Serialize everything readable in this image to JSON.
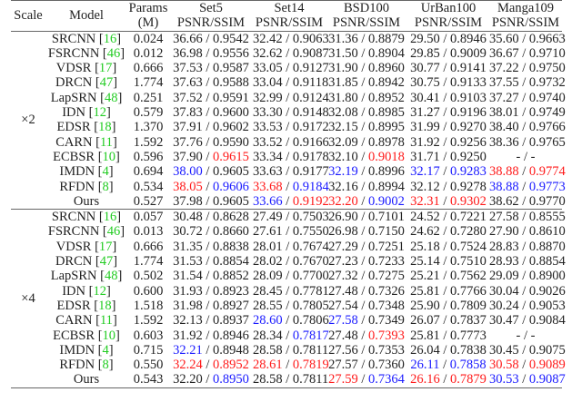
{
  "header": {
    "scale": "Scale",
    "model": "Model",
    "params": [
      "Params",
      "(M)"
    ],
    "datasets": [
      "Set5",
      "Set14",
      "BSD100",
      "UrBan100",
      "Manga109"
    ],
    "metric": "PSNR/SSIM"
  },
  "colors": {
    "best": "#ff1a1a",
    "second": "#1a1aff",
    "citation": "#22cc22"
  },
  "groups": [
    {
      "scale": "×2",
      "rows": [
        {
          "model": "SRCNN",
          "ref": "16",
          "params": "0.024",
          "cells": [
            [
              "36.66",
              "0.9542",
              "",
              ""
            ],
            [
              "32.42",
              "0.9063",
              "",
              ""
            ],
            [
              "31.36",
              "0.8879",
              "",
              ""
            ],
            [
              "29.50",
              "0.8946",
              "",
              ""
            ],
            [
              "35.60",
              "0.9663",
              "",
              ""
            ]
          ]
        },
        {
          "model": "FSRCNN",
          "ref": "46",
          "params": "0.012",
          "cells": [
            [
              "36.98",
              "0.9556",
              "",
              ""
            ],
            [
              "32.62",
              "0.9087",
              "",
              ""
            ],
            [
              "31.50",
              "0.8904",
              "",
              ""
            ],
            [
              "29.85",
              "0.9009",
              "",
              ""
            ],
            [
              "36.67",
              "0.9710",
              "",
              ""
            ]
          ]
        },
        {
          "model": "VDSR",
          "ref": "17",
          "params": "0.666",
          "cells": [
            [
              "37.53",
              "0.9587",
              "",
              ""
            ],
            [
              "33.05",
              "0.9127",
              "",
              ""
            ],
            [
              "31.90",
              "0.8960",
              "",
              ""
            ],
            [
              "30.77",
              "0.9141",
              "",
              ""
            ],
            [
              "37.22",
              "0.9750",
              "",
              ""
            ]
          ]
        },
        {
          "model": "DRCN",
          "ref": "47",
          "params": "1.774",
          "cells": [
            [
              "37.63",
              "0.9588",
              "",
              ""
            ],
            [
              "33.04",
              "0.9118",
              "",
              ""
            ],
            [
              "31.85",
              "0.8942",
              "",
              ""
            ],
            [
              "30.75",
              "0.9133",
              "",
              ""
            ],
            [
              "37.55",
              "0.9732",
              "",
              ""
            ]
          ]
        },
        {
          "model": "LapSRN",
          "ref": "48",
          "params": "0.251",
          "cells": [
            [
              "37.52",
              "0.9591",
              "",
              ""
            ],
            [
              "32.99",
              "0.9124",
              "",
              ""
            ],
            [
              "31.80",
              "0.8952",
              "",
              ""
            ],
            [
              "30.41",
              "0.9103",
              "",
              ""
            ],
            [
              "37.27",
              "0.9740",
              "",
              ""
            ]
          ]
        },
        {
          "model": "IDN",
          "ref": "12",
          "params": "0.579",
          "cells": [
            [
              "37.83",
              "0.9600",
              "",
              ""
            ],
            [
              "33.30",
              "0.9148",
              "",
              ""
            ],
            [
              "32.08",
              "0.8985",
              "",
              ""
            ],
            [
              "31.27",
              "0.9196",
              "",
              ""
            ],
            [
              "38.01",
              "0.9749",
              "",
              ""
            ]
          ]
        },
        {
          "model": "EDSR",
          "ref": "18",
          "params": "1.370",
          "cells": [
            [
              "37.91",
              "0.9602",
              "",
              ""
            ],
            [
              "33.53",
              "0.9172",
              "",
              ""
            ],
            [
              "32.15",
              "0.8995",
              "",
              ""
            ],
            [
              "31.99",
              "0.9270",
              "",
              ""
            ],
            [
              "38.40",
              "0.9766",
              "",
              ""
            ]
          ]
        },
        {
          "model": "CARN",
          "ref": "11",
          "params": "1.592",
          "cells": [
            [
              "37.76",
              "0.9590",
              "",
              ""
            ],
            [
              "33.52",
              "0.9166",
              "",
              ""
            ],
            [
              "32.09",
              "0.8978",
              "",
              ""
            ],
            [
              "31.92",
              "0.9256",
              "",
              ""
            ],
            [
              "38.36",
              "0.9765",
              "",
              ""
            ]
          ]
        },
        {
          "model": "ECBSR",
          "ref": "10",
          "params": "0.596",
          "cells": [
            [
              "37.90",
              "0.9615",
              "",
              "red"
            ],
            [
              "33.34",
              "0.9178",
              "",
              ""
            ],
            [
              "32.10",
              "0.9018",
              "",
              "red"
            ],
            [
              "31.71",
              "0.9250",
              "",
              ""
            ],
            [
              "-",
              "-",
              "",
              ""
            ]
          ]
        },
        {
          "model": "IMDN",
          "ref": "4",
          "params": "0.694",
          "cells": [
            [
              "38.00",
              "0.9605",
              "blue",
              ""
            ],
            [
              "33.63",
              "0.9177",
              "",
              ""
            ],
            [
              "32.19",
              "0.8996",
              "blue",
              ""
            ],
            [
              "32.17",
              "0.9283",
              "blue",
              "blue"
            ],
            [
              "38.88",
              "0.9774",
              "red",
              "red"
            ]
          ]
        },
        {
          "model": "RFDN",
          "ref": "8",
          "params": "0.534",
          "cells": [
            [
              "38.05",
              "0.9606",
              "red",
              "blue"
            ],
            [
              "33.68",
              "0.9184",
              "red",
              "blue"
            ],
            [
              "32.16",
              "0.8994",
              "",
              ""
            ],
            [
              "32.12",
              "0.9278",
              "",
              ""
            ],
            [
              "38.88",
              "0.9773",
              "blue",
              "blue"
            ]
          ]
        },
        {
          "model": "Ours",
          "ref": "",
          "params": "0.527",
          "cells": [
            [
              "37.98",
              "0.9605",
              "",
              ""
            ],
            [
              "33.66",
              "0.9192",
              "blue",
              "red"
            ],
            [
              "32.20",
              "0.9002",
              "red",
              "blue"
            ],
            [
              "32.31",
              "0.9302",
              "red",
              "red"
            ],
            [
              "38.62",
              "0.9770",
              "",
              ""
            ]
          ]
        }
      ]
    },
    {
      "scale": "×4",
      "rows": [
        {
          "model": "SRCNN",
          "ref": "16",
          "params": "0.057",
          "cells": [
            [
              "30.48",
              "0.8628",
              "",
              ""
            ],
            [
              "27.49",
              "0.7503",
              "",
              ""
            ],
            [
              "26.90",
              "0.7101",
              "",
              ""
            ],
            [
              "24.52",
              "0.7221",
              "",
              ""
            ],
            [
              "27.58",
              "0.8555",
              "",
              ""
            ]
          ]
        },
        {
          "model": "FSRCNN",
          "ref": "46",
          "params": "0.013",
          "cells": [
            [
              "30.72",
              "0.8660",
              "",
              ""
            ],
            [
              "27.61",
              "0.7550",
              "",
              ""
            ],
            [
              "26.98",
              "0.7150",
              "",
              ""
            ],
            [
              "24.62",
              "0.7280",
              "",
              ""
            ],
            [
              "27.90",
              "0.8610",
              "",
              ""
            ]
          ]
        },
        {
          "model": "VDSR",
          "ref": "17",
          "params": "0.666",
          "cells": [
            [
              "31.35",
              "0.8838",
              "",
              ""
            ],
            [
              "28.01",
              "0.7674",
              "",
              ""
            ],
            [
              "27.29",
              "0.7251",
              "",
              ""
            ],
            [
              "25.18",
              "0.7524",
              "",
              ""
            ],
            [
              "28.83",
              "0.8870",
              "",
              ""
            ]
          ]
        },
        {
          "model": "DRCN",
          "ref": "47",
          "params": "1.774",
          "cells": [
            [
              "31.53",
              "0.8854",
              "",
              ""
            ],
            [
              "28.02",
              "0.7670",
              "",
              ""
            ],
            [
              "27.23",
              "0.7233",
              "",
              ""
            ],
            [
              "25.14",
              "0.7510",
              "",
              ""
            ],
            [
              "28.93",
              "0.8854",
              "",
              ""
            ]
          ]
        },
        {
          "model": "LapSRN",
          "ref": "48",
          "params": "0.502",
          "cells": [
            [
              "31.54",
              "0.8852",
              "",
              ""
            ],
            [
              "28.09",
              "0.7700",
              "",
              ""
            ],
            [
              "27.32",
              "0.7275",
              "",
              ""
            ],
            [
              "25.21",
              "0.7562",
              "",
              ""
            ],
            [
              "29.09",
              "0.8900",
              "",
              ""
            ]
          ]
        },
        {
          "model": "IDN",
          "ref": "12",
          "params": "0.600",
          "cells": [
            [
              "31.93",
              "0.8923",
              "",
              ""
            ],
            [
              "28.45",
              "0.7781",
              "",
              ""
            ],
            [
              "27.48",
              "0.7326",
              "",
              ""
            ],
            [
              "25.81",
              "0.7766",
              "",
              ""
            ],
            [
              "30.04",
              "0.9026",
              "",
              ""
            ]
          ]
        },
        {
          "model": "EDSR",
          "ref": "18",
          "params": "1.518",
          "cells": [
            [
              "31.98",
              "0.8927",
              "",
              ""
            ],
            [
              "28.55",
              "0.7805",
              "",
              ""
            ],
            [
              "27.54",
              "0.7348",
              "",
              ""
            ],
            [
              "25.90",
              "0.7809",
              "",
              ""
            ],
            [
              "30.24",
              "0.9053",
              "",
              ""
            ]
          ]
        },
        {
          "model": "CARN",
          "ref": "11",
          "params": "1.592",
          "cells": [
            [
              "32.13",
              "0.8937",
              "",
              ""
            ],
            [
              "28.60",
              "0.7806",
              "blue",
              ""
            ],
            [
              "27.58",
              "0.7349",
              "blue",
              ""
            ],
            [
              "26.07",
              "0.7837",
              "",
              ""
            ],
            [
              "30.47",
              "0.9084",
              "",
              ""
            ]
          ]
        },
        {
          "model": "ECBSR",
          "ref": "10",
          "params": "0.603",
          "cells": [
            [
              "31.92",
              "0.8946",
              "",
              ""
            ],
            [
              "28.34",
              "0.7817",
              "",
              "blue"
            ],
            [
              "27.48",
              "0.7393",
              "",
              "red"
            ],
            [
              "25.81",
              "0.7773",
              "",
              ""
            ],
            [
              "-",
              "-",
              "",
              ""
            ]
          ]
        },
        {
          "model": "IMDN",
          "ref": "4",
          "params": "0.715",
          "cells": [
            [
              "32.21",
              "0.8948",
              "blue",
              ""
            ],
            [
              "28.58",
              "0.7811",
              "",
              ""
            ],
            [
              "27.56",
              "0.7353",
              "",
              ""
            ],
            [
              "26.04",
              "0.7838",
              "",
              ""
            ],
            [
              "30.45",
              "0.9075",
              "",
              ""
            ]
          ]
        },
        {
          "model": "RFDN",
          "ref": "8",
          "params": "0.550",
          "cells": [
            [
              "32.24",
              "0.8952",
              "red",
              "red"
            ],
            [
              "28.61",
              "0.7819",
              "red",
              "red"
            ],
            [
              "27.57",
              "0.7360",
              "",
              ""
            ],
            [
              "26.11",
              "0.7858",
              "blue",
              "blue"
            ],
            [
              "30.58",
              "0.9089",
              "red",
              "red"
            ]
          ]
        },
        {
          "model": "Ours",
          "ref": "",
          "params": "0.543",
          "cells": [
            [
              "32.20",
              "0.8950",
              "",
              "blue"
            ],
            [
              "28.58",
              "0.7811",
              "",
              ""
            ],
            [
              "27.59",
              "0.7364",
              "red",
              "blue"
            ],
            [
              "26.16",
              "0.7879",
              "red",
              "red"
            ],
            [
              "30.53",
              "0.9087",
              "blue",
              "blue"
            ]
          ]
        }
      ]
    }
  ]
}
